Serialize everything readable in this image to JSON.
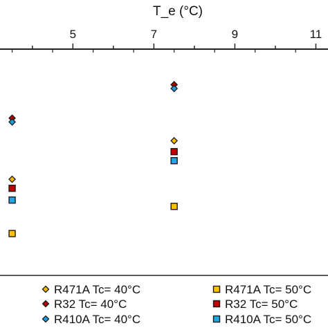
{
  "chart_data": {
    "type": "scatter",
    "title": "",
    "xlabel": "T_e (°C)",
    "ylabel": "",
    "x_axis_position": "top",
    "xlim": [
      3.2,
      11.3
    ],
    "ylim": [
      0,
      1
    ],
    "xticks": [
      5,
      7,
      9,
      11
    ],
    "xtick_labels": [
      "5",
      "7",
      "9",
      "11"
    ],
    "grid": false,
    "legend_position": "bottom",
    "series": [
      {
        "name": "R471A Tc= 40°C",
        "marker": "diamond",
        "color": "#f5b800",
        "x": [
          3.5,
          7.5
        ],
        "y": [
          0.425,
          0.595
        ]
      },
      {
        "name": "R471A Tc= 50°C",
        "marker": "square",
        "color": "#ffc000",
        "x": [
          3.5,
          7.5
        ],
        "y": [
          0.185,
          0.305
        ]
      },
      {
        "name": "R32 Tc= 40°C",
        "marker": "diamond",
        "color": "#b40000",
        "x": [
          3.5,
          7.5
        ],
        "y": [
          0.695,
          0.843
        ]
      },
      {
        "name": "R32 Tc= 50°C",
        "marker": "square",
        "color": "#c00000",
        "x": [
          3.5,
          7.5
        ],
        "y": [
          0.385,
          0.547
        ]
      },
      {
        "name": "R410A Tc= 40°C",
        "marker": "diamond",
        "color": "#1f9bd7",
        "x": [
          3.5,
          7.5
        ],
        "y": [
          0.678,
          0.826
        ]
      },
      {
        "name": "R410A Tc= 50°C",
        "marker": "square",
        "color": "#1ea7e4",
        "x": [
          3.5,
          7.5
        ],
        "y": [
          0.333,
          0.507
        ]
      }
    ]
  }
}
